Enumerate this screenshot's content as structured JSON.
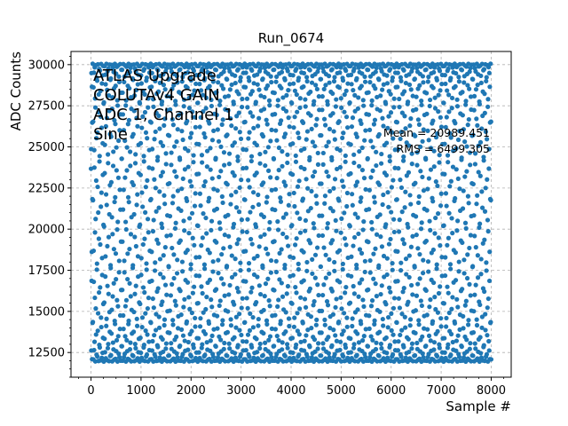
{
  "chart_data": {
    "type": "scatter",
    "title": "Run_0674",
    "xlabel": "Sample #",
    "ylabel": "ADC Counts",
    "xlim": [
      -400,
      8400
    ],
    "ylim": [
      11000,
      30800
    ],
    "xticks": [
      0,
      1000,
      2000,
      3000,
      4000,
      5000,
      6000,
      7000,
      8000
    ],
    "yticks": [
      12500,
      15000,
      17500,
      20000,
      22500,
      25000,
      27500,
      30000
    ],
    "xtick_labels": [
      "0",
      "1000",
      "2000",
      "3000",
      "4000",
      "5000",
      "6000",
      "7000",
      "8000"
    ],
    "ytick_labels": [
      "12500",
      "15000",
      "17500",
      "20000",
      "22500",
      "25000",
      "27500",
      "30000"
    ],
    "grid": true,
    "series": [
      {
        "color": "#1f77b4",
        "marker": "o",
        "signal": "sine",
        "x_range": [
          0,
          8000
        ],
        "y_min": 11950,
        "y_max": 30050
      }
    ],
    "annotations_left": [
      "ATLAS Upgrade",
      "COLUTAv4 GAIN",
      "ADC 1, Channel 1",
      "Sine"
    ],
    "annotations_right": [
      "Mean = 20989.451",
      "RMS = 6499.305"
    ]
  }
}
